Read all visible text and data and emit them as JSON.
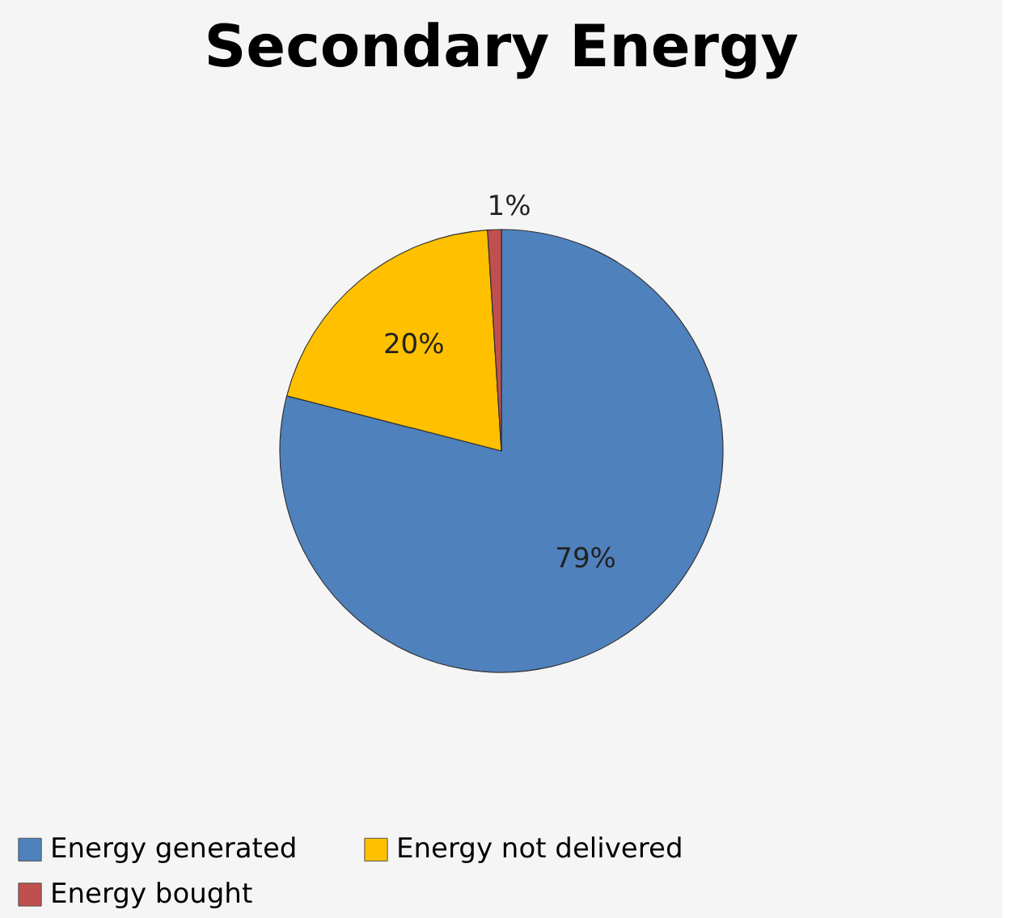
{
  "chart_data": {
    "type": "pie",
    "title": "Secondary Energy",
    "categories": [
      "Energy generated",
      "Energy not delivered",
      "Energy bought"
    ],
    "values": [
      79,
      20,
      1
    ],
    "colors": [
      "#4f81bd",
      "#ffc000",
      "#c0504d"
    ],
    "value_labels": [
      "79%",
      "20%",
      "1%"
    ],
    "legend": "bottom"
  }
}
